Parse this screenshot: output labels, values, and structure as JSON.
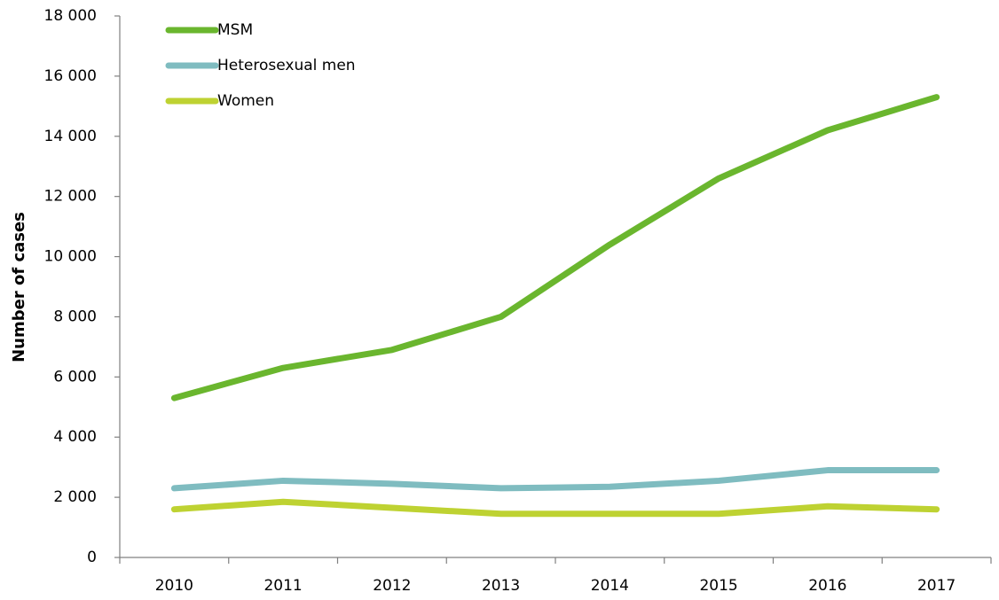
{
  "chart_data": {
    "type": "line",
    "y_label": "Number of cases",
    "categories": [
      "2010",
      "2011",
      "2012",
      "2013",
      "2014",
      "2015",
      "2016",
      "2017"
    ],
    "series": [
      {
        "name": "MSM",
        "color": "#6ab62e",
        "values": [
          5300,
          6300,
          6900,
          8000,
          10400,
          12600,
          14200,
          15300
        ]
      },
      {
        "name": "Heterosexual men",
        "color": "#7fbcc0",
        "values": [
          2300,
          2550,
          2450,
          2300,
          2350,
          2550,
          2900,
          2900
        ]
      },
      {
        "name": "Women",
        "color": "#bed232",
        "values": [
          1600,
          1850,
          1650,
          1450,
          1450,
          1450,
          1700,
          1600
        ]
      }
    ],
    "ylim": [
      0,
      18000
    ],
    "yticks": [
      0,
      {
        "value": 2000,
        "label": "2 000"
      },
      {
        "value": 4000,
        "label": "4 000"
      },
      {
        "value": 6000,
        "label": "6 000"
      },
      {
        "value": 8000,
        "label": "8 000"
      },
      {
        "value": 10000,
        "label": "10 000"
      },
      {
        "value": 12000,
        "label": "12 000"
      },
      {
        "value": 14000,
        "label": "14 000"
      },
      {
        "value": 16000,
        "label": "16 000"
      },
      {
        "value": 18000,
        "label": "18 000"
      }
    ],
    "grid": false,
    "legend": "upper left"
  }
}
